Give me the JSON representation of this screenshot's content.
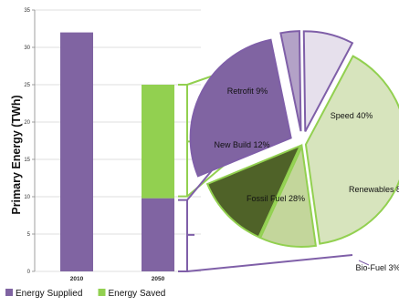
{
  "chart_data": [
    {
      "type": "bar",
      "stacked": true,
      "ylabel": "Primary Energy (TWh)",
      "ylim": [
        0,
        35
      ],
      "yticks": [
        0,
        5,
        10,
        15,
        20,
        25,
        30,
        35
      ],
      "grid": true,
      "categories": [
        "2010",
        "2050"
      ],
      "series": [
        {
          "name": "Energy Supplied",
          "color": "#8064a2",
          "values": [
            32,
            9.8
          ]
        },
        {
          "name": "Energy Saved",
          "color": "#92d050",
          "values": [
            0,
            15.2
          ]
        }
      ],
      "legend_position": "bottom-left"
    },
    {
      "type": "pie",
      "exploded": true,
      "slices": [
        {
          "label": "Speed",
          "value": 40,
          "value_text": "40%",
          "color": "#d7e4bd",
          "group": "Energy Saved"
        },
        {
          "label": "Retrofit",
          "value": 9,
          "value_text": "9%",
          "color": "#c3d69b",
          "group": "Energy Saved"
        },
        {
          "label": "New Build",
          "value": 12,
          "value_text": "12%",
          "color": "#4f6228",
          "group": "Energy Saved"
        },
        {
          "label": "Fossil Fuel",
          "value": 28,
          "value_text": "28%",
          "color": "#8064a2",
          "group": "Energy Supplied"
        },
        {
          "label": "Bio-Fuel",
          "value": 3,
          "value_text": "3%",
          "color": "#b3a2c7",
          "group": "Energy Supplied"
        },
        {
          "label": "Renewables",
          "value": 8,
          "value_text": "8",
          "color": "#e6e0ec",
          "group": "Energy Supplied"
        }
      ]
    }
  ]
}
